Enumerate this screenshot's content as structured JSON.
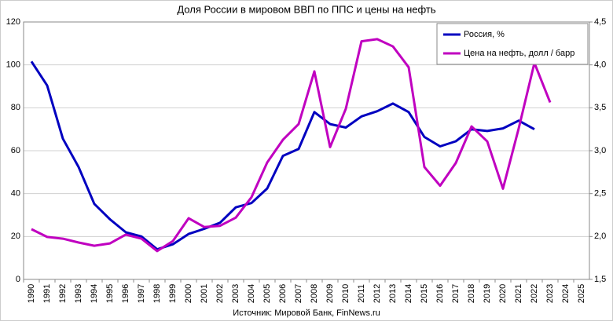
{
  "chart_data": {
    "type": "line",
    "title": "Доля России в мировом ВВП по ППС и цены на нефть",
    "source": "Источник: Мировой Банк, FinNews.ru",
    "categories": [
      "1990",
      "1991",
      "1992",
      "1993",
      "1994",
      "1995",
      "1996",
      "1997",
      "1998",
      "1999",
      "2000",
      "2001",
      "2002",
      "2003",
      "2004",
      "2005",
      "2006",
      "2007",
      "2008",
      "2009",
      "2010",
      "2011",
      "2012",
      "2013",
      "2014",
      "2015",
      "2016",
      "2017",
      "2018",
      "2019",
      "2020",
      "2021",
      "2022",
      "2023",
      "2024",
      "2025"
    ],
    "series": [
      {
        "name": "Россия, %",
        "color": "#0000c0",
        "axis": "y2",
        "values": [
          4.04,
          3.76,
          3.14,
          2.81,
          2.38,
          2.2,
          2.05,
          2.0,
          1.85,
          1.91,
          2.03,
          2.09,
          2.16,
          2.34,
          2.39,
          2.56,
          2.94,
          3.02,
          3.45,
          3.31,
          3.27,
          3.4,
          3.46,
          3.55,
          3.45,
          3.16,
          3.05,
          3.11,
          3.25,
          3.23,
          3.26,
          3.35,
          3.25,
          null,
          null,
          null
        ]
      },
      {
        "name": "Цена на нефть, долл / барр",
        "color": "#c000c0",
        "values": [
          23.4,
          19.8,
          19.0,
          17.2,
          15.7,
          16.8,
          20.9,
          19.0,
          13.2,
          17.9,
          28.5,
          24.4,
          25.0,
          28.8,
          38.3,
          54.5,
          65.1,
          72.4,
          97,
          61.7,
          79.5,
          111,
          112,
          108.6,
          98.9,
          52.4,
          43.7,
          54.3,
          71.3,
          64.3,
          42.3,
          70.4,
          100.9,
          82.5,
          null,
          null
        ]
      }
    ],
    "ylim": [
      0,
      120
    ],
    "yticks": [
      0,
      20,
      40,
      60,
      80,
      100,
      120
    ],
    "y2lim": [
      1.5,
      4.5
    ],
    "y2ticks": [
      {
        "value": 1.5,
        "label": "1,5"
      },
      {
        "value": 2.0,
        "label": "2,0"
      },
      {
        "value": 2.5,
        "label": "2,5"
      },
      {
        "value": 3.0,
        "label": "3,0"
      },
      {
        "value": 3.5,
        "label": "3,5"
      },
      {
        "value": 4.0,
        "label": "4,0"
      },
      {
        "value": 4.5,
        "label": "4,5"
      }
    ],
    "grid": true,
    "legend": "top-right"
  }
}
